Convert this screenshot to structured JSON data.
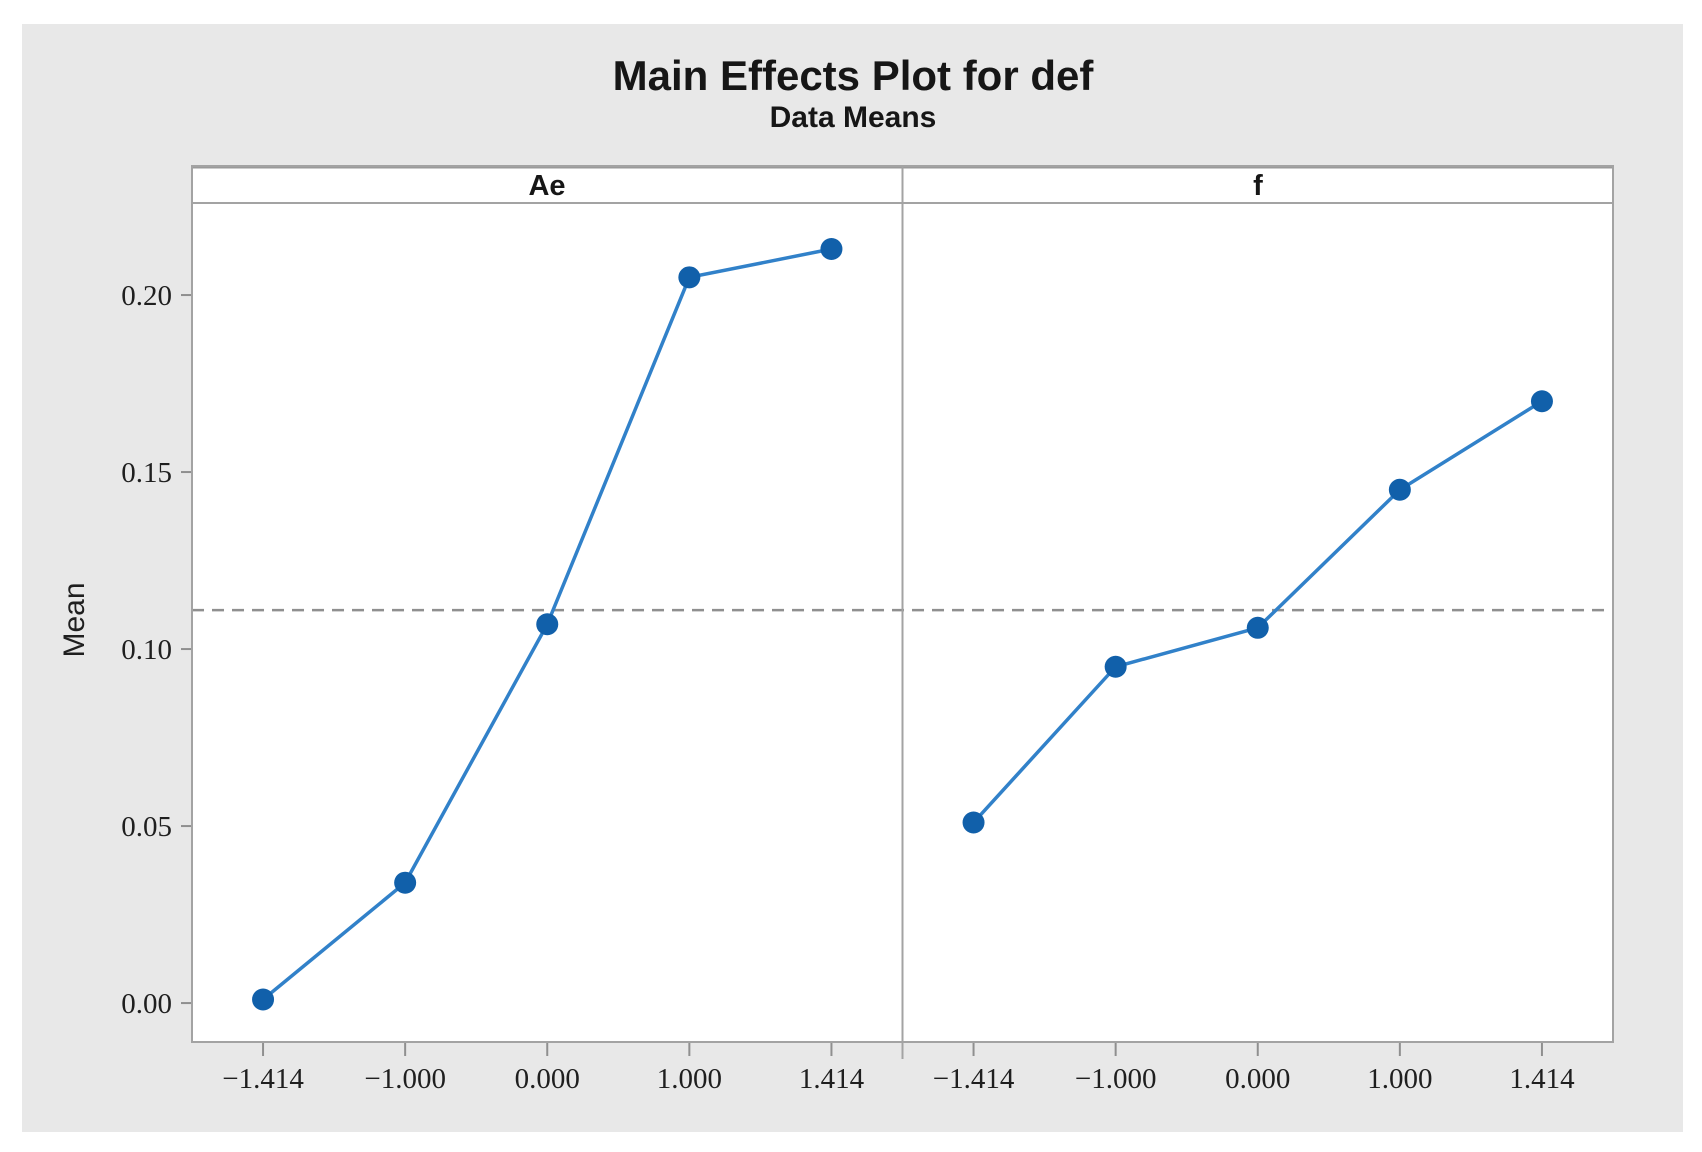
{
  "chart_data": {
    "type": "line",
    "title": "Main Effects Plot for def",
    "subtitle": "Data Means",
    "ylabel": "Mean",
    "categories": [
      "−1.414",
      "−1.000",
      "0.000",
      "1.000",
      "1.414"
    ],
    "x_values": [
      -1.414,
      -1.0,
      0.0,
      1.0,
      1.414
    ],
    "panels": [
      {
        "label": "Ae",
        "values": [
          0.001,
          0.034,
          0.107,
          0.205,
          0.213
        ]
      },
      {
        "label": "f",
        "values": [
          0.051,
          0.095,
          0.106,
          0.145,
          0.17
        ]
      }
    ],
    "ytick_labels": [
      "0.00",
      "0.05",
      "0.10",
      "0.15",
      "0.20"
    ],
    "ytick_values": [
      0.0,
      0.05,
      0.1,
      0.15,
      0.2
    ],
    "ylim": [
      -0.011,
      0.226
    ],
    "reference_line": {
      "value": 0.111,
      "style": "dashed"
    },
    "grid": false,
    "legend": "none",
    "marker": "filled-circle",
    "colors": {
      "marker": "#1160aa",
      "line": "#3181c9",
      "reference_line": "#8f8f8f",
      "canvas_bg": "#e8e8e8",
      "plot_bg": "#ffffff",
      "border": "#a3a3a3",
      "strip_top_border": "#9a9a9a",
      "tick_mark": "#8f8f8f",
      "tick_text": "#1f1f1f",
      "title_text": "#161616"
    }
  }
}
